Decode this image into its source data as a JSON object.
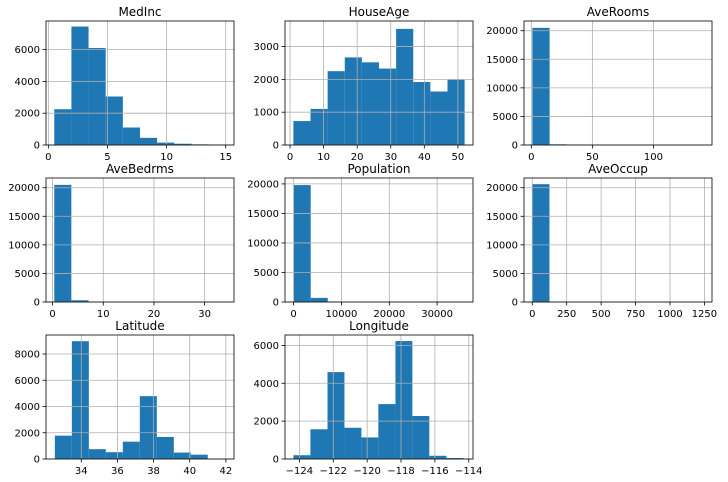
{
  "figure": {
    "bar_color": "#1f77b4",
    "background": "#ffffff",
    "grid": true
  },
  "chart_data": [
    {
      "type": "bar",
      "title": "MedInc",
      "xlim": [
        -0.2,
        15.7
      ],
      "ylim": [
        0,
        7800
      ],
      "xticks": [
        0,
        5,
        10,
        15
      ],
      "yticks": [
        0,
        2000,
        4000,
        6000
      ],
      "bin_edges": [
        0.5,
        1.95,
        3.4,
        4.85,
        6.3,
        7.75,
        9.2,
        10.65,
        12.1,
        13.55,
        15.0
      ],
      "counts": [
        2250,
        7450,
        6100,
        3050,
        1100,
        450,
        150,
        80,
        40,
        20
      ]
    },
    {
      "type": "bar",
      "title": "HouseAge",
      "xlim": [
        -1.5,
        54.5
      ],
      "ylim": [
        0,
        3780
      ],
      "xticks": [
        0,
        10,
        20,
        30,
        40,
        50
      ],
      "yticks": [
        0,
        1000,
        2000,
        3000
      ],
      "bin_edges": [
        1,
        6.1,
        11.2,
        16.3,
        21.4,
        26.5,
        31.6,
        36.7,
        41.8,
        46.9,
        52
      ],
      "counts": [
        730,
        1100,
        2250,
        2670,
        2520,
        2330,
        3540,
        1920,
        1630,
        1990
      ]
    },
    {
      "type": "bar",
      "title": "AveRooms",
      "xlim": [
        -6.0,
        148.0
      ],
      "ylim": [
        0,
        21700
      ],
      "xticks": [
        0,
        50,
        100
      ],
      "yticks": [
        0,
        5000,
        10000,
        15000,
        20000
      ],
      "bin_edges": [
        0.85,
        15.0,
        29.1,
        43.2,
        57.4,
        71.5,
        85.6,
        99.8,
        113.9,
        128.0,
        141.9
      ],
      "counts": [
        20500,
        120,
        20,
        5,
        3,
        2,
        0,
        0,
        2,
        1
      ]
    },
    {
      "type": "bar",
      "title": "AveBedrms",
      "xlim": [
        -1.3,
        35.8
      ],
      "ylim": [
        0,
        21700
      ],
      "xticks": [
        0,
        10,
        20,
        30
      ],
      "yticks": [
        0,
        5000,
        10000,
        15000,
        20000
      ],
      "bin_edges": [
        0.33,
        3.7,
        7.1,
        10.4,
        13.8,
        17.2,
        20.5,
        23.9,
        27.3,
        30.7,
        34.1
      ],
      "counts": [
        20500,
        300,
        30,
        8,
        3,
        2,
        1,
        1,
        0,
        1
      ]
    },
    {
      "type": "bar",
      "title": "Population",
      "xlim": [
        -1800,
        37500
      ],
      "ylim": [
        0,
        21000
      ],
      "xticks": [
        0,
        10000,
        20000,
        30000
      ],
      "yticks": [
        0,
        5000,
        10000,
        15000,
        20000
      ],
      "bin_edges": [
        3,
        3571,
        7139,
        10707,
        14275,
        17843,
        21411,
        24979,
        28547,
        32115,
        35682
      ],
      "counts": [
        19800,
        700,
        80,
        20,
        5,
        2,
        0,
        0,
        0,
        1
      ]
    },
    {
      "type": "bar",
      "title": "AveOccup",
      "xlim": [
        -60,
        1305
      ],
      "ylim": [
        0,
        21700
      ],
      "xticks": [
        0,
        250,
        500,
        750,
        1000,
        1250
      ],
      "yticks": [
        0,
        5000,
        10000,
        15000,
        20000
      ],
      "bin_edges": [
        0.7,
        124.9,
        249.1,
        373.2,
        497.4,
        621.6,
        745.8,
        870.0,
        994.1,
        1118.3,
        1242.5
      ],
      "counts": [
        20620,
        5,
        2,
        1,
        1,
        0,
        0,
        0,
        0,
        1
      ]
    },
    {
      "type": "bar",
      "title": "Latitude",
      "xlim": [
        32.05,
        42.45
      ],
      "ylim": [
        0,
        9450
      ],
      "xticks": [
        34,
        36,
        38,
        40,
        42
      ],
      "yticks": [
        0,
        2000,
        4000,
        6000,
        8000
      ],
      "bin_edges": [
        32.54,
        33.48,
        34.42,
        35.36,
        36.3,
        37.24,
        38.18,
        39.12,
        40.06,
        41.0,
        41.95
      ],
      "counts": [
        1780,
        8980,
        750,
        520,
        1320,
        4790,
        1680,
        490,
        330,
        20
      ]
    },
    {
      "type": "bar",
      "title": "Longitude",
      "xlim": [
        -124.85,
        -113.75
      ],
      "ylim": [
        0,
        6550
      ],
      "xticks": [
        -124,
        -122,
        -120,
        -118,
        -116,
        -114
      ],
      "yticks": [
        0,
        2000,
        4000,
        6000
      ],
      "bin_edges": [
        -124.35,
        -123.35,
        -122.34,
        -121.34,
        -120.34,
        -119.34,
        -118.33,
        -117.33,
        -116.33,
        -115.32,
        -114.31
      ],
      "counts": [
        200,
        1570,
        4590,
        1650,
        1140,
        2900,
        6230,
        2270,
        170,
        50
      ]
    }
  ]
}
